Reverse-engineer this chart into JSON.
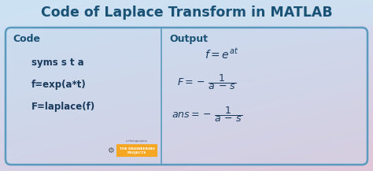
{
  "title": "Code of Laplace Transform in MATLAB",
  "title_color": "#1a5276",
  "title_fontsize": 12.5,
  "box_border_color": "#5a9abf",
  "divider_color": "#5a9abf",
  "code_header": "Code",
  "output_header": "Output",
  "header_color": "#1a5276",
  "header_fontsize": 9,
  "code_lines": [
    "syms s t a",
    "f=exp(a*t)",
    "F=laplace(f)"
  ],
  "code_color": "#1a3a5c",
  "code_fontsize": 8.5,
  "output_color": "#1a3a5c",
  "output_fontsize": 9
}
